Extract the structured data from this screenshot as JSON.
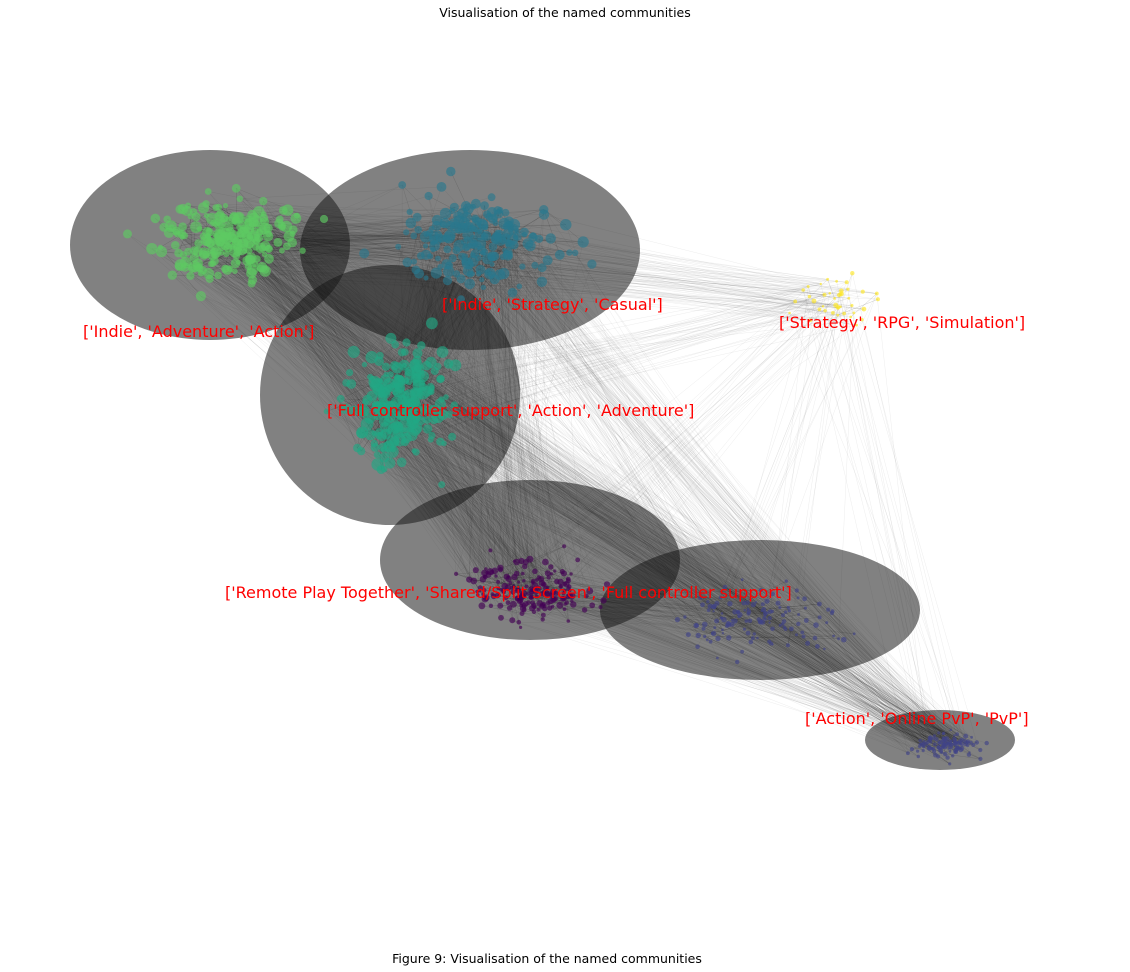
{
  "figure": {
    "title": "Visualisation of the named communities",
    "caption": "Figure 9: Visualisation of the named communities"
  },
  "communities": [
    {
      "id": "c_light_green",
      "label": "['Indie', 'Adventure', 'Action']",
      "color": "#5ec962"
    },
    {
      "id": "c_teal",
      "label": "['Indie', 'Strategy', 'Casual']",
      "color": "#2a788e"
    },
    {
      "id": "c_yellow",
      "label": "['Strategy', 'RPG', 'Simulation']",
      "color": "#fde725"
    },
    {
      "id": "c_green",
      "label": "['Full controller support', 'Action', 'Adventure']",
      "color": "#22a884"
    },
    {
      "id": "c_purple",
      "label": "['Remote Play Together', 'Shared/Split Screen', 'Full controller support']",
      "color": "#440154"
    },
    {
      "id": "c_indigo",
      "label": "['Action', 'Online PvP', 'PvP']",
      "color": "#414487"
    }
  ],
  "styles": {
    "edge_color": "#1a1a1a",
    "label_color": "#ff0000"
  }
}
